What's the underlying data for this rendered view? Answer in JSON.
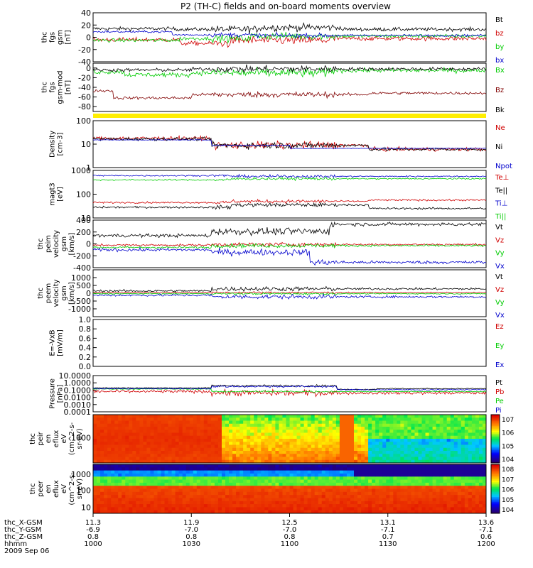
{
  "chart_data": {
    "type": "line",
    "title": "P2 (TH-C) fields and on-board moments overview",
    "x_ticks": {
      "hhmm": [
        "1000",
        "1030",
        "1100",
        "1130",
        "1200"
      ],
      "thc_X-GSM": [
        "11.3",
        "11.9",
        "12.5",
        "13.1",
        "13.6"
      ],
      "thc_Y-GSM": [
        "-6.9",
        "-7.0",
        "-7.0",
        "-7.1",
        "-7.1"
      ],
      "thc_Z-GSM": [
        "0.8",
        "0.8",
        "0.8",
        "0.7",
        "0.6"
      ]
    },
    "x_row_labels": [
      "thc_X-GSM",
      "thc_Y-GSM",
      "thc_Z-GSM",
      "hhmm"
    ],
    "date_label": "2009 Sep 06",
    "panels": [
      {
        "id": "fgs",
        "ylabel": [
          "thc",
          "fgs",
          "gsm",
          "[nT]"
        ],
        "ylim": [
          -40,
          40
        ],
        "ticks": [
          "-40",
          "-20",
          "0",
          "20",
          "40"
        ],
        "series": [
          {
            "name": "Bt",
            "color": "#000000",
            "segments": [
              [
                0,
                0.21,
                14
              ],
              [
                0.21,
                0.42,
                13
              ],
              [
                0.42,
                0.63,
                16
              ],
              [
                0.63,
                1,
                13
              ]
            ],
            "noise": 5
          },
          {
            "name": "bz",
            "color": "#d00000",
            "segments": [
              [
                0,
                0.22,
                -4
              ],
              [
                0.22,
                0.35,
                -10
              ],
              [
                0.35,
                0.6,
                -5
              ],
              [
                0.6,
                1,
                -2
              ]
            ],
            "noise": 6
          },
          {
            "name": "by",
            "color": "#00cc00",
            "segments": [
              [
                0,
                0.22,
                -5
              ],
              [
                0.22,
                0.4,
                -2
              ],
              [
                0.4,
                1,
                2
              ]
            ],
            "noise": 5
          },
          {
            "name": "bx",
            "color": "#0000cc",
            "segments": [
              [
                0,
                0.2,
                9
              ],
              [
                0.2,
                0.4,
                4
              ],
              [
                0.4,
                1,
                3
              ]
            ],
            "noise": 3
          }
        ]
      },
      {
        "id": "fgs-mod",
        "ylabel": [
          "thc",
          "fgs",
          "gsm-mod",
          "[nT]"
        ],
        "ylim": [
          -90,
          10
        ],
        "ticks": [
          "-80",
          "-60",
          "-40",
          "-20",
          "0"
        ],
        "series": [
          {
            "name": "Bx",
            "color": "#00cc00",
            "segments": [
              [
                0,
                0.08,
                -8
              ],
              [
                0.08,
                0.25,
                -14
              ],
              [
                0.25,
                0.6,
                -10
              ],
              [
                0.6,
                1,
                -5
              ]
            ],
            "noise": 8
          },
          {
            "name": "Bz",
            "color": "#800000",
            "segments": [
              [
                0,
                0.05,
                -47
              ],
              [
                0.05,
                0.25,
                -62
              ],
              [
                0.25,
                0.7,
                -55
              ],
              [
                0.7,
                1,
                -52
              ]
            ],
            "noise": 5
          },
          {
            "name": "Bk",
            "color": "#000000",
            "segments": [
              [
                0,
                0.25,
                -4
              ],
              [
                0.25,
                1,
                -2
              ]
            ],
            "noise": 6
          }
        ]
      },
      {
        "id": "status-bar",
        "ylabel": [],
        "type": "bar-strip",
        "color": "#ffee00"
      },
      {
        "id": "density",
        "ylabel": [
          "Density",
          "[cm-3]"
        ],
        "ylim_log": [
          0,
          2
        ],
        "ticks": [
          "1",
          "10",
          "100"
        ],
        "series": [
          {
            "name": "Ne",
            "color": "#d00000",
            "segments": [
              [
                0,
                0.3,
                1.25
              ],
              [
                0.3,
                0.7,
                0.95
              ],
              [
                0.7,
                1,
                0.78
              ]
            ],
            "noise": 0.14
          },
          {
            "name": "Ni",
            "color": "#000000",
            "segments": [
              [
                0,
                0.3,
                1.22
              ],
              [
                0.3,
                0.7,
                0.95
              ],
              [
                0.7,
                1,
                0.78
              ]
            ],
            "noise": 0.12
          },
          {
            "name": "Npot",
            "color": "#0000cc",
            "segments": [
              [
                0,
                0.3,
                1.18
              ],
              [
                0.3,
                0.5,
                0.95
              ],
              [
                0.5,
                1,
                0.82
              ]
            ],
            "noise": 0.02
          }
        ]
      },
      {
        "id": "moments-temp",
        "ylabel": [
          "magt3",
          "[eV]"
        ],
        "ylim_log": [
          1,
          3
        ],
        "ticks": [
          "10",
          "100",
          "1000"
        ],
        "series": [
          {
            "name": "Te⊥",
            "color": "#d00000",
            "segments": [
              [
                0,
                0.35,
                1.65
              ],
              [
                0.35,
                0.7,
                1.7
              ],
              [
                0.7,
                1,
                1.75
              ]
            ],
            "noise": 0.06
          },
          {
            "name": "Te||",
            "color": "#000000",
            "segments": [
              [
                0,
                0.35,
                1.45
              ],
              [
                0.35,
                0.7,
                1.55
              ],
              [
                0.7,
                1,
                1.4
              ]
            ],
            "noise": 0.07
          },
          {
            "name": "Ti⊥",
            "color": "#0000cc",
            "segments": [
              [
                0,
                0.35,
                2.78
              ],
              [
                0.35,
                1,
                2.75
              ]
            ],
            "noise": 0.05
          },
          {
            "name": "Ti||",
            "color": "#00cc00",
            "segments": [
              [
                0,
                0.35,
                2.6
              ],
              [
                0.35,
                1,
                2.65
              ]
            ],
            "noise": 0.05
          }
        ]
      },
      {
        "id": "peim-velocity",
        "ylabel": [
          "thc",
          "peim",
          "velocity",
          "gsm",
          "[km/s]"
        ],
        "ylim": [
          -400,
          400
        ],
        "ticks": [
          "-400",
          "-200",
          "0",
          "200",
          "400"
        ],
        "series": [
          {
            "name": "Vt",
            "color": "#000000",
            "segments": [
              [
                0,
                0.3,
                140
              ],
              [
                0.3,
                0.6,
                210
              ],
              [
                0.6,
                1,
                330
              ]
            ],
            "noise": 50
          },
          {
            "name": "Vz",
            "color": "#d00000",
            "segments": [
              [
                0,
                0.3,
                -20
              ],
              [
                0.3,
                1,
                -10
              ]
            ],
            "noise": 30
          },
          {
            "name": "Vy",
            "color": "#00cc00",
            "segments": [
              [
                0,
                0.3,
                -60
              ],
              [
                0.3,
                1,
                -30
              ]
            ],
            "noise": 30
          },
          {
            "name": "Vx",
            "color": "#0000cc",
            "segments": [
              [
                0,
                0.3,
                -100
              ],
              [
                0.3,
                0.55,
                -140
              ],
              [
                0.55,
                1,
                -310
              ]
            ],
            "noise": 45
          }
        ]
      },
      {
        "id": "peem-velocity",
        "ylabel": [
          "thc",
          "peem",
          "velocity",
          "gsm",
          "[km/s]"
        ],
        "ylim": [
          -1500,
          1500
        ],
        "ticks": [
          "-1000",
          "-500",
          "0",
          "500",
          "1000"
        ],
        "series": [
          {
            "name": "Vt",
            "color": "#000000",
            "segments": [
              [
                0,
                0.3,
                150
              ],
              [
                0.3,
                1,
                280
              ]
            ],
            "noise": 120
          },
          {
            "name": "Vz",
            "color": "#d00000",
            "segments": [
              [
                0,
                1,
                40
              ]
            ],
            "noise": 60
          },
          {
            "name": "Vy",
            "color": "#00cc00",
            "segments": [
              [
                0,
                1,
                -30
              ]
            ],
            "noise": 60
          },
          {
            "name": "Vx",
            "color": "#0000cc",
            "segments": [
              [
                0,
                0.3,
                -130
              ],
              [
                0.3,
                1,
                -230
              ]
            ],
            "noise": 120
          }
        ]
      },
      {
        "id": "efield",
        "ylabel": [
          "E=-VxB",
          "[mV/m]"
        ],
        "ylim": [
          0,
          1
        ],
        "ticks": [
          "0.0",
          "0.2",
          "0.4",
          "0.6",
          "0.8",
          "1.0"
        ],
        "series": [
          {
            "name": "Ez",
            "color": "#d00000",
            "segments": []
          },
          {
            "name": "Ey",
            "color": "#00cc00",
            "segments": []
          },
          {
            "name": "Ex",
            "color": "#0000cc",
            "segments": []
          }
        ]
      },
      {
        "id": "pressure",
        "ylabel": [
          "Pressure",
          "[nPa]"
        ],
        "ylim_log": [
          -4,
          1
        ],
        "ticks": [
          "0.0001",
          "0.0010",
          "0.0100",
          "0.1000",
          "1.0000",
          "10.0000"
        ],
        "series": [
          {
            "name": "Pt",
            "color": "#000000",
            "segments": [
              [
                0,
                0.3,
                -0.7
              ],
              [
                0.3,
                0.62,
                -0.4
              ],
              [
                0.62,
                0.72,
                -0.9
              ],
              [
                0.72,
                1,
                -0.8
              ]
            ],
            "noise": 0.12
          },
          {
            "name": "Pb",
            "color": "#d00000",
            "segments": [
              [
                0,
                0.3,
                -1.2
              ],
              [
                0.3,
                1,
                -1.4
              ]
            ],
            "noise": 0.35
          },
          {
            "name": "Pe",
            "color": "#00cc00",
            "segments": [
              [
                0,
                0.3,
                -0.85
              ],
              [
                0.3,
                1,
                -1.2
              ]
            ],
            "noise": 0.1
          },
          {
            "name": "Pi",
            "color": "#0000cc",
            "segments": [
              [
                0,
                0.3,
                -0.8
              ],
              [
                0.3,
                0.62,
                -0.5
              ],
              [
                0.62,
                1,
                -0.95
              ]
            ],
            "noise": 0.12
          }
        ]
      },
      {
        "id": "peir-spectrogram",
        "type": "spectrogram",
        "ylabel": [
          "thc",
          "peir",
          "en",
          "eflux",
          "eV",
          "(cm^2-s-",
          "sr-eV)"
        ],
        "ticks": [
          "1000"
        ],
        "colorbar_ticks": [
          "10^4",
          "10^5",
          "10^6",
          "10^7"
        ]
      },
      {
        "id": "peer-spectrogram",
        "type": "spectrogram",
        "ylabel": [
          "thc",
          "peer",
          "en",
          "eflux",
          "eV",
          "(cm^2-s-",
          "sr-eV)"
        ],
        "ticks": [
          "10",
          "100",
          "1000"
        ],
        "colorbar_ticks": [
          "10^4",
          "10^5",
          "10^6",
          "10^7",
          "10^8"
        ]
      }
    ]
  }
}
